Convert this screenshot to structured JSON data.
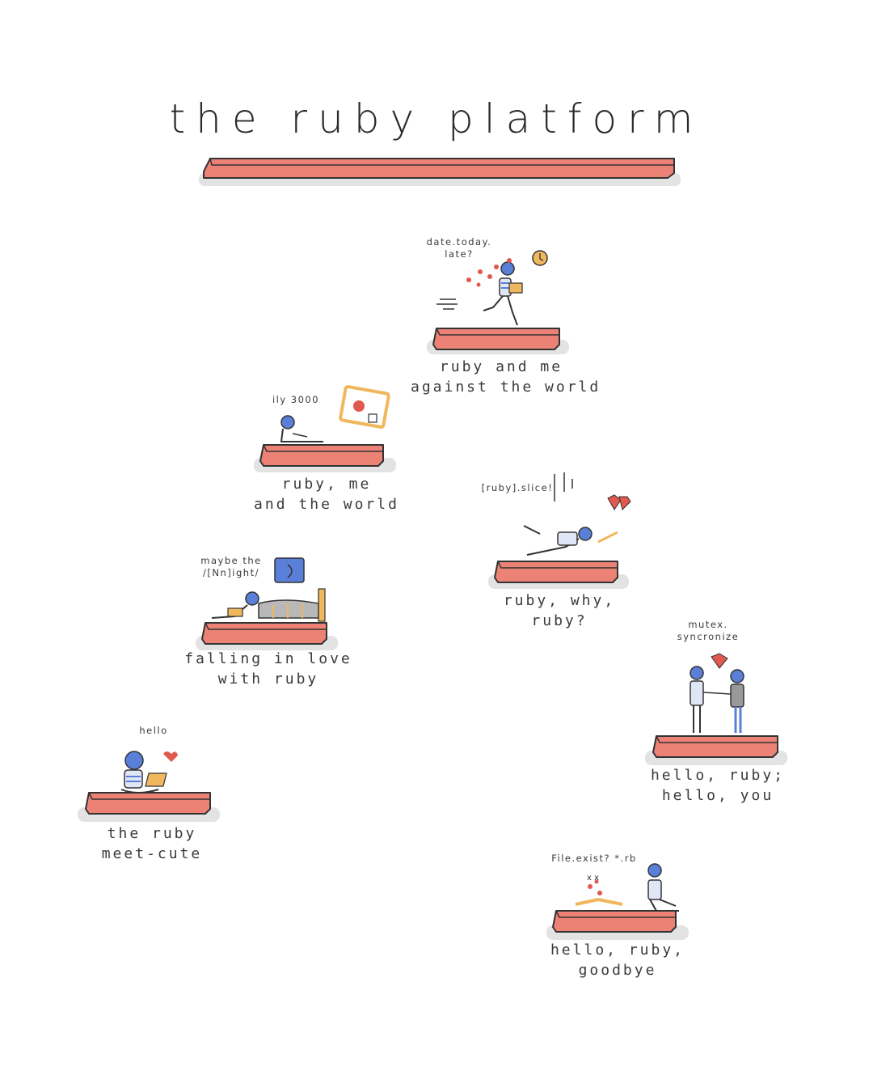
{
  "title": "the ruby platform",
  "colors": {
    "platform": "#ec8276",
    "platform_edge": "#333333",
    "shadow": "#d9d9d9",
    "person": "#5a7fd8",
    "ruby": "#e0584e",
    "laptop": "#f0b75c"
  },
  "scenes": [
    {
      "id": "meet-cute",
      "note": [
        "hello"
      ],
      "caption": [
        "the ruby",
        "meet-cute"
      ]
    },
    {
      "id": "falling-in-love",
      "note": [
        "maybe the",
        "/[Nn]ight/"
      ],
      "caption": [
        "falling in love",
        "with ruby"
      ]
    },
    {
      "id": "ruby-me-world",
      "note": [
        "ily 3000"
      ],
      "caption": [
        "ruby, me",
        "and the world"
      ]
    },
    {
      "id": "against-the-world",
      "note": [
        "date.today.",
        "late?"
      ],
      "caption": [
        "ruby and me",
        "against the world"
      ]
    },
    {
      "id": "ruby-why",
      "note": [
        "[ruby].slice!"
      ],
      "caption": [
        "ruby, why,",
        "ruby?"
      ]
    },
    {
      "id": "hello-you",
      "note": [
        "mutex.",
        "syncronize"
      ],
      "caption": [
        "hello, ruby;",
        "hello, you"
      ]
    },
    {
      "id": "goodbye",
      "note": [
        "File.exist? *.rb"
      ],
      "caption": [
        "hello, ruby,",
        "goodbye"
      ]
    }
  ]
}
